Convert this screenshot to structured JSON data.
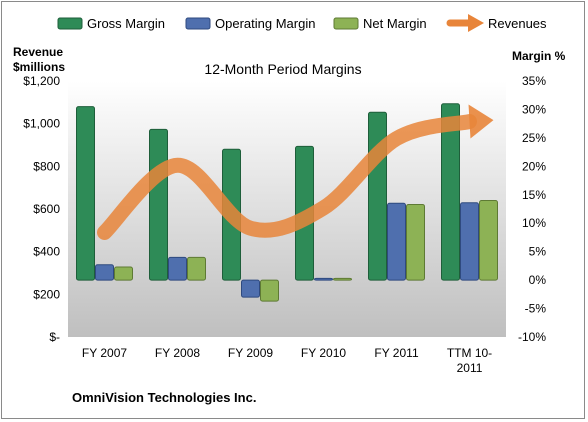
{
  "chart_data": {
    "type": "bar",
    "title": "12-Month Period Margins",
    "footer": "OmniVision Technologies Inc.",
    "categories": [
      [
        "FY 2007"
      ],
      [
        "FY 2008"
      ],
      [
        "FY 2009"
      ],
      [
        "FY 2010"
      ],
      [
        "FY 2011"
      ],
      [
        "TTM 10-",
        "2011"
      ]
    ],
    "left_axis": {
      "label_lines": [
        "Revenue",
        "$millions"
      ],
      "ylim": [
        0,
        1200
      ],
      "ticks": [
        0,
        200,
        400,
        600,
        800,
        1000,
        1200
      ],
      "tick_labels": [
        "$-",
        "$200",
        "$400",
        "$600",
        "$800",
        "$1,000",
        "$1,200"
      ]
    },
    "right_axis": {
      "label": "Margin %",
      "ylim": [
        -10,
        35
      ],
      "ticks": [
        -10,
        -5,
        0,
        5,
        10,
        15,
        20,
        25,
        30,
        35
      ],
      "tick_labels": [
        "-10%",
        "-5%",
        "0%",
        "5%",
        "10%",
        "15%",
        "20%",
        "25%",
        "30%",
        "35%"
      ]
    },
    "series": [
      {
        "name": "Gross Margin",
        "axis": "right",
        "kind": "bar",
        "color": "#2e8b57",
        "values": [
          30.5,
          26.5,
          23,
          23.5,
          29.5,
          31
        ]
      },
      {
        "name": "Operating Margin",
        "axis": "right",
        "kind": "bar",
        "color": "#4f6fae",
        "values": [
          2.7,
          4,
          -3,
          0.3,
          13.5,
          13.6
        ]
      },
      {
        "name": "Net Margin",
        "axis": "right",
        "kind": "bar",
        "color": "#8db255",
        "values": [
          2.3,
          4,
          -3.7,
          0.3,
          13.3,
          14
        ]
      },
      {
        "name": "Revenues",
        "axis": "left",
        "kind": "line",
        "color": "#e8853a",
        "values": [
          490,
          805,
          510,
          605,
          930,
          1010
        ]
      }
    ],
    "grid": false,
    "legend": "top"
  }
}
